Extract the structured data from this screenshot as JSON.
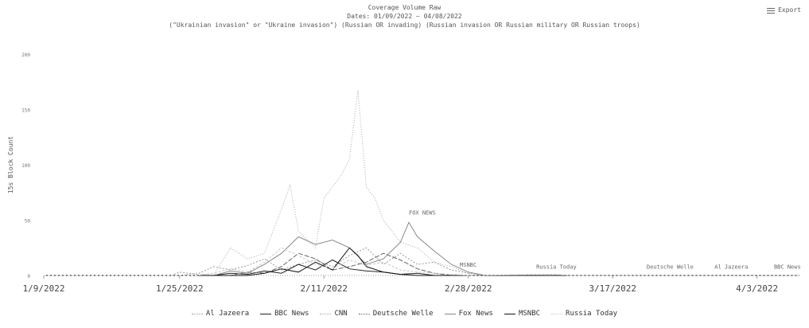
{
  "header": {
    "title": "Coverage Volume Raw",
    "subtitle": "Dates: 01/09/2022 – 04/08/2022",
    "query": "(\"Ukrainian invasion\" or \"Ukraine invasion\") (Russian OR invading) (Russian invasion OR Russian military OR Russian troops)",
    "export_label": "Export"
  },
  "chart_data": {
    "type": "line",
    "ylabel": "15s Block Count",
    "ylim": [
      0,
      200
    ],
    "y_ticks": [
      0,
      50,
      100,
      150,
      200
    ],
    "x_ticks": [
      "1/9/2022",
      "1/25/2022",
      "2/11/2022",
      "2/28/2022",
      "3/17/2022",
      "4/3/2022"
    ],
    "x_tick_days": [
      0,
      16,
      33,
      50,
      67,
      84
    ],
    "x_range_days": [
      0,
      89
    ],
    "annotations": [
      {
        "text": "FOX NEWS",
        "x_day": 43,
        "y": 55
      },
      {
        "text": "MSNBC",
        "x_day": 49,
        "y": 8
      },
      {
        "text": "Russia Today",
        "x_day": 58,
        "y": 6
      },
      {
        "text": "Deutsche Welle",
        "x_day": 71,
        "y": 6
      },
      {
        "text": "Al Jazeera",
        "x_day": 79,
        "y": 6
      },
      {
        "text": "BBC News",
        "x_day": 86,
        "y": 6
      }
    ],
    "series": [
      {
        "name": "Al Jazeera",
        "color": "#9a9a9a",
        "dash": "2,2",
        "points": [
          [
            0,
            0
          ],
          [
            15,
            0
          ],
          [
            16,
            3
          ],
          [
            18,
            1
          ],
          [
            20,
            8
          ],
          [
            22,
            5
          ],
          [
            24,
            9
          ],
          [
            26,
            15
          ],
          [
            28,
            5
          ],
          [
            30,
            10
          ],
          [
            32,
            14
          ],
          [
            34,
            8
          ],
          [
            36,
            18
          ],
          [
            38,
            25
          ],
          [
            40,
            10
          ],
          [
            42,
            20
          ],
          [
            44,
            10
          ],
          [
            46,
            12
          ],
          [
            48,
            5
          ],
          [
            50,
            2
          ],
          [
            52,
            0
          ],
          [
            89,
            0
          ]
        ]
      },
      {
        "name": "BBC News",
        "color": "#222222",
        "dash": "",
        "points": [
          [
            0,
            0
          ],
          [
            20,
            0
          ],
          [
            22,
            2
          ],
          [
            24,
            1
          ],
          [
            26,
            4
          ],
          [
            28,
            2
          ],
          [
            30,
            10
          ],
          [
            32,
            5
          ],
          [
            34,
            14
          ],
          [
            36,
            6
          ],
          [
            38,
            4
          ],
          [
            40,
            3
          ],
          [
            42,
            1
          ],
          [
            44,
            2
          ],
          [
            46,
            0
          ],
          [
            89,
            0
          ]
        ]
      },
      {
        "name": "CNN",
        "color": "#aaaaaa",
        "dash": "1,2",
        "points": [
          [
            0,
            0
          ],
          [
            16,
            0
          ],
          [
            18,
            2
          ],
          [
            20,
            0
          ],
          [
            22,
            25
          ],
          [
            24,
            15
          ],
          [
            26,
            20
          ],
          [
            28,
            60
          ],
          [
            29,
            82
          ],
          [
            30,
            40
          ],
          [
            32,
            25
          ],
          [
            33,
            70
          ],
          [
            35,
            90
          ],
          [
            36,
            105
          ],
          [
            37,
            167
          ],
          [
            38,
            80
          ],
          [
            39,
            70
          ],
          [
            40,
            50
          ],
          [
            42,
            30
          ],
          [
            44,
            25
          ],
          [
            46,
            12
          ],
          [
            48,
            8
          ],
          [
            50,
            2
          ],
          [
            52,
            0
          ],
          [
            89,
            0
          ]
        ]
      },
      {
        "name": "Deutsche Welle",
        "color": "#666666",
        "dash": "6,2",
        "points": [
          [
            0,
            0
          ],
          [
            22,
            0
          ],
          [
            24,
            3
          ],
          [
            26,
            2
          ],
          [
            28,
            8
          ],
          [
            30,
            20
          ],
          [
            32,
            15
          ],
          [
            34,
            5
          ],
          [
            36,
            8
          ],
          [
            38,
            12
          ],
          [
            40,
            20
          ],
          [
            42,
            14
          ],
          [
            44,
            6
          ],
          [
            46,
            2
          ],
          [
            48,
            0
          ],
          [
            89,
            0
          ]
        ]
      },
      {
        "name": "Fox News",
        "color": "#888888",
        "dash": "",
        "points": [
          [
            0,
            0
          ],
          [
            20,
            0
          ],
          [
            22,
            4
          ],
          [
            24,
            2
          ],
          [
            26,
            10
          ],
          [
            28,
            20
          ],
          [
            30,
            35
          ],
          [
            32,
            28
          ],
          [
            34,
            32
          ],
          [
            36,
            25
          ],
          [
            38,
            10
          ],
          [
            40,
            15
          ],
          [
            42,
            30
          ],
          [
            43,
            48
          ],
          [
            44,
            35
          ],
          [
            46,
            22
          ],
          [
            48,
            10
          ],
          [
            50,
            3
          ],
          [
            52,
            0
          ],
          [
            89,
            0
          ]
        ]
      },
      {
        "name": "MSNBC",
        "color": "#111111",
        "dash": "",
        "points": [
          [
            0,
            0
          ],
          [
            24,
            0
          ],
          [
            26,
            2
          ],
          [
            28,
            6
          ],
          [
            30,
            3
          ],
          [
            32,
            12
          ],
          [
            34,
            5
          ],
          [
            36,
            25
          ],
          [
            37,
            18
          ],
          [
            38,
            8
          ],
          [
            40,
            3
          ],
          [
            42,
            1
          ],
          [
            44,
            0
          ],
          [
            89,
            0
          ]
        ]
      },
      {
        "name": "Russia Today",
        "color": "#c8c8c8",
        "dash": "3,2",
        "points": [
          [
            0,
            0
          ],
          [
            18,
            0
          ],
          [
            20,
            2
          ],
          [
            22,
            6
          ],
          [
            24,
            3
          ],
          [
            26,
            12
          ],
          [
            28,
            25
          ],
          [
            30,
            18
          ],
          [
            32,
            10
          ],
          [
            34,
            6
          ],
          [
            36,
            14
          ],
          [
            38,
            9
          ],
          [
            40,
            12
          ],
          [
            42,
            5
          ],
          [
            44,
            3
          ],
          [
            46,
            2
          ],
          [
            48,
            1
          ],
          [
            50,
            0
          ],
          [
            60,
            1
          ],
          [
            62,
            0
          ],
          [
            89,
            0
          ]
        ]
      }
    ]
  },
  "legend": [
    "Al Jazeera",
    "BBC News",
    "CNN",
    "Deutsche Welle",
    "Fox News",
    "MSNBC",
    "Russia Today"
  ]
}
